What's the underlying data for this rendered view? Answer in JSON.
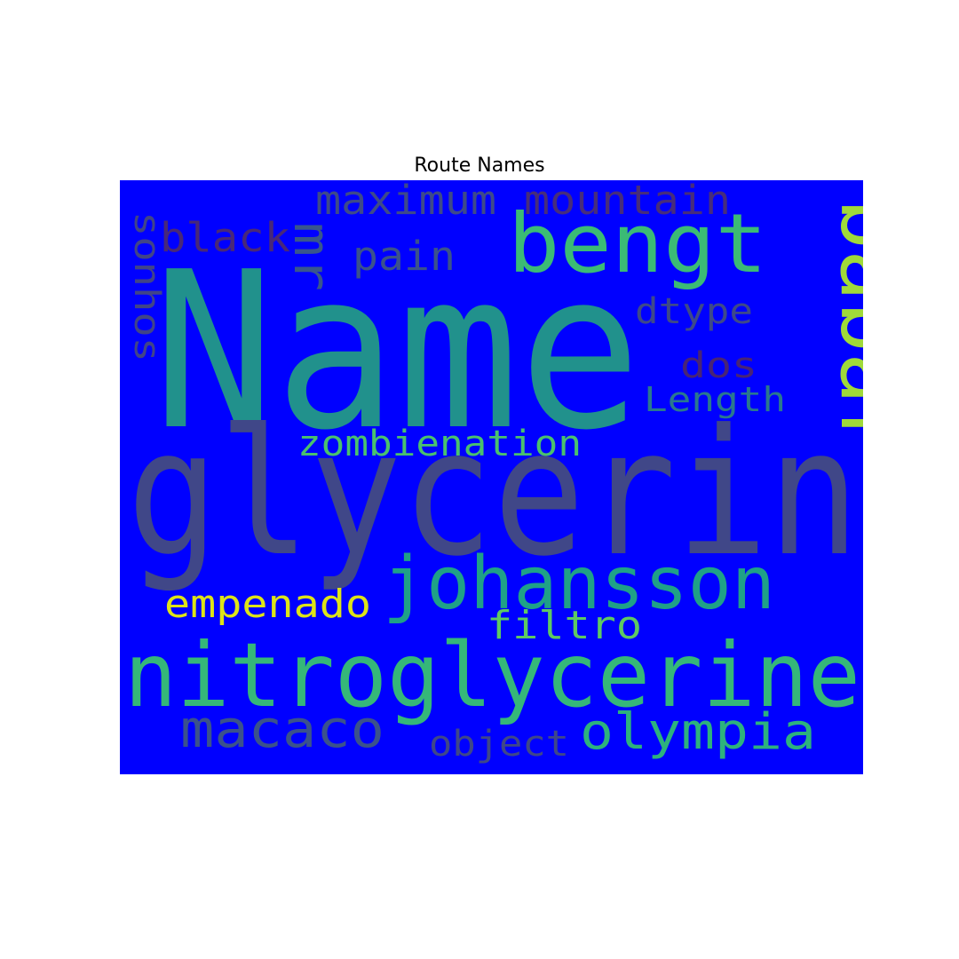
{
  "title": "Route Names",
  "background_color": "#0000ff",
  "words": [
    {
      "text": "Name",
      "color": "#21918c"
    },
    {
      "text": "glycerin",
      "color": "#404788"
    },
    {
      "text": "nitroglycerine",
      "color": "#35b779"
    },
    {
      "text": "babar",
      "color": "#a0da39"
    },
    {
      "text": "bengt",
      "color": "#3bbb75"
    },
    {
      "text": "johansson",
      "color": "#1fa187"
    },
    {
      "text": "mr",
      "color": "#39568c"
    },
    {
      "text": "maximum",
      "color": "#3e4a89"
    },
    {
      "text": "mountain",
      "color": "#472d7b"
    },
    {
      "text": "black",
      "color": "#482878"
    },
    {
      "text": "pain",
      "color": "#3b528b"
    },
    {
      "text": "sonhos",
      "color": "#414487"
    },
    {
      "text": "dtype",
      "color": "#3e4989"
    },
    {
      "text": "dos",
      "color": "#482475"
    },
    {
      "text": "Length",
      "color": "#2a788e"
    },
    {
      "text": "zombienation",
      "color": "#4ac16d"
    },
    {
      "text": "empenado",
      "color": "#dde318"
    },
    {
      "text": "filtro",
      "color": "#5ec962"
    },
    {
      "text": "macaco",
      "color": "#3b528b"
    },
    {
      "text": "object",
      "color": "#3f4788"
    },
    {
      "text": "olympia",
      "color": "#2db27d"
    }
  ]
}
